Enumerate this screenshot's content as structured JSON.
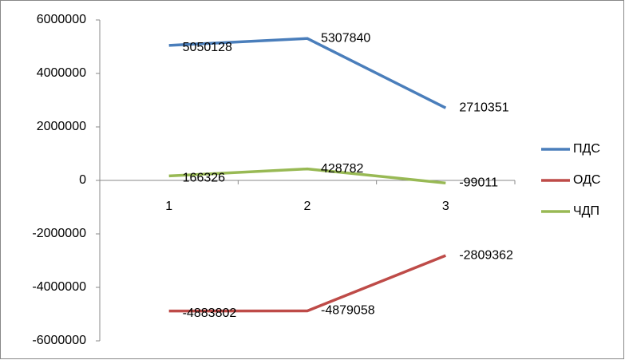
{
  "chart_data": {
    "type": "line",
    "categories": [
      "1",
      "2",
      "3"
    ],
    "series": [
      {
        "name": "ПДС",
        "color": "#4a7ebb",
        "values": [
          5050128,
          5307840,
          2710351
        ]
      },
      {
        "name": "ОДС",
        "color": "#be4b48",
        "values": [
          -4883802,
          -4879058,
          -2809362
        ]
      },
      {
        "name": "ЧДП",
        "color": "#98b954",
        "values": [
          166326,
          428782,
          -99011
        ]
      }
    ],
    "ylim": [
      -6000000,
      6000000
    ],
    "yticks": [
      -6000000,
      -4000000,
      -2000000,
      0,
      2000000,
      4000000,
      6000000
    ],
    "grid": false,
    "legend": "right"
  }
}
